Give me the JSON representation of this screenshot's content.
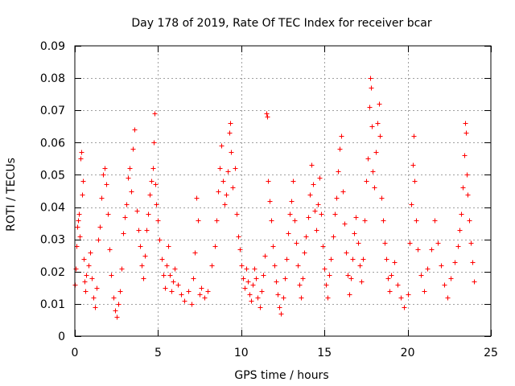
{
  "chart_data": {
    "type": "scatter",
    "title": "Day 178 of 2019, Rate Of TEC Index for receiver bcar",
    "xlabel": "GPS time / hours",
    "ylabel": "ROTI / TECUs",
    "xlim": [
      0,
      25
    ],
    "ylim": [
      0,
      0.09
    ],
    "x_ticks": [
      0,
      5,
      10,
      15,
      20,
      25
    ],
    "x_tick_labels": [
      "0",
      "5",
      "10",
      "15",
      "20",
      "25"
    ],
    "y_ticks": [
      0,
      0.01,
      0.02,
      0.03,
      0.04,
      0.05,
      0.06,
      0.07,
      0.08,
      0.09
    ],
    "y_tick_labels": [
      "0",
      "0.01",
      "0.02",
      "0.03",
      "0.04",
      "0.05",
      "0.06",
      "0.07",
      "0.08",
      "0.09"
    ],
    "grid": true,
    "marker": "plus",
    "color": "#ff0000",
    "points": [
      [
        0.0,
        0.016
      ],
      [
        0.05,
        0.021
      ],
      [
        0.1,
        0.028
      ],
      [
        0.15,
        0.034
      ],
      [
        0.2,
        0.036
      ],
      [
        0.25,
        0.038
      ],
      [
        0.3,
        0.031
      ],
      [
        0.35,
        0.055
      ],
      [
        0.4,
        0.057
      ],
      [
        0.45,
        0.044
      ],
      [
        0.5,
        0.048
      ],
      [
        0.55,
        0.024
      ],
      [
        0.6,
        0.017
      ],
      [
        0.65,
        0.014
      ],
      [
        0.7,
        0.019
      ],
      [
        0.8,
        0.022
      ],
      [
        0.9,
        0.026
      ],
      [
        1.0,
        0.018
      ],
      [
        1.1,
        0.012
      ],
      [
        1.2,
        0.009
      ],
      [
        1.3,
        0.015
      ],
      [
        1.4,
        0.03
      ],
      [
        1.5,
        0.034
      ],
      [
        1.6,
        0.043
      ],
      [
        1.7,
        0.05
      ],
      [
        1.8,
        0.052
      ],
      [
        1.9,
        0.047
      ],
      [
        2.0,
        0.038
      ],
      [
        2.1,
        0.027
      ],
      [
        2.2,
        0.019
      ],
      [
        2.3,
        0.012
      ],
      [
        2.4,
        0.008
      ],
      [
        2.5,
        0.006
      ],
      [
        2.6,
        0.01
      ],
      [
        2.7,
        0.014
      ],
      [
        2.8,
        0.021
      ],
      [
        2.9,
        0.032
      ],
      [
        3.0,
        0.037
      ],
      [
        3.1,
        0.041
      ],
      [
        3.2,
        0.049
      ],
      [
        3.3,
        0.052
      ],
      [
        3.4,
        0.045
      ],
      [
        3.5,
        0.058
      ],
      [
        3.6,
        0.064
      ],
      [
        3.7,
        0.039
      ],
      [
        3.8,
        0.033
      ],
      [
        3.9,
        0.028
      ],
      [
        4.0,
        0.022
      ],
      [
        4.1,
        0.018
      ],
      [
        4.2,
        0.025
      ],
      [
        4.3,
        0.033
      ],
      [
        4.4,
        0.038
      ],
      [
        4.5,
        0.044
      ],
      [
        4.6,
        0.048
      ],
      [
        4.7,
        0.052
      ],
      [
        4.75,
        0.06
      ],
      [
        4.8,
        0.069
      ],
      [
        4.85,
        0.047
      ],
      [
        4.9,
        0.041
      ],
      [
        5.0,
        0.036
      ],
      [
        5.1,
        0.03
      ],
      [
        5.2,
        0.024
      ],
      [
        5.3,
        0.019
      ],
      [
        5.4,
        0.015
      ],
      [
        5.5,
        0.022
      ],
      [
        5.6,
        0.028
      ],
      [
        5.7,
        0.019
      ],
      [
        5.8,
        0.014
      ],
      [
        5.9,
        0.017
      ],
      [
        6.0,
        0.021
      ],
      [
        6.2,
        0.016
      ],
      [
        6.4,
        0.013
      ],
      [
        6.6,
        0.011
      ],
      [
        6.8,
        0.014
      ],
      [
        7.0,
        0.01
      ],
      [
        7.1,
        0.018
      ],
      [
        7.2,
        0.026
      ],
      [
        7.3,
        0.043
      ],
      [
        7.4,
        0.036
      ],
      [
        7.5,
        0.013
      ],
      [
        7.6,
        0.015
      ],
      [
        7.8,
        0.012
      ],
      [
        8.0,
        0.014
      ],
      [
        8.2,
        0.022
      ],
      [
        8.4,
        0.028
      ],
      [
        8.5,
        0.036
      ],
      [
        8.6,
        0.045
      ],
      [
        8.7,
        0.052
      ],
      [
        8.8,
        0.059
      ],
      [
        8.9,
        0.048
      ],
      [
        9.0,
        0.041
      ],
      [
        9.1,
        0.044
      ],
      [
        9.2,
        0.051
      ],
      [
        9.3,
        0.063
      ],
      [
        9.35,
        0.066
      ],
      [
        9.4,
        0.057
      ],
      [
        9.5,
        0.046
      ],
      [
        9.6,
        0.052
      ],
      [
        9.7,
        0.038
      ],
      [
        9.8,
        0.031
      ],
      [
        9.9,
        0.027
      ],
      [
        10.0,
        0.022
      ],
      [
        10.1,
        0.018
      ],
      [
        10.2,
        0.015
      ],
      [
        10.3,
        0.021
      ],
      [
        10.4,
        0.017
      ],
      [
        10.5,
        0.013
      ],
      [
        10.6,
        0.011
      ],
      [
        10.7,
        0.016
      ],
      [
        10.8,
        0.021
      ],
      [
        10.9,
        0.018
      ],
      [
        11.0,
        0.012
      ],
      [
        11.1,
        0.009
      ],
      [
        11.2,
        0.014
      ],
      [
        11.3,
        0.019
      ],
      [
        11.4,
        0.025
      ],
      [
        11.5,
        0.069
      ],
      [
        11.55,
        0.068
      ],
      [
        11.6,
        0.048
      ],
      [
        11.7,
        0.042
      ],
      [
        11.8,
        0.036
      ],
      [
        11.9,
        0.028
      ],
      [
        12.0,
        0.022
      ],
      [
        12.1,
        0.017
      ],
      [
        12.2,
        0.013
      ],
      [
        12.3,
        0.009
      ],
      [
        12.4,
        0.007
      ],
      [
        12.5,
        0.012
      ],
      [
        12.6,
        0.018
      ],
      [
        12.7,
        0.024
      ],
      [
        12.8,
        0.032
      ],
      [
        12.9,
        0.038
      ],
      [
        13.0,
        0.042
      ],
      [
        13.1,
        0.048
      ],
      [
        13.2,
        0.036
      ],
      [
        13.3,
        0.029
      ],
      [
        13.4,
        0.022
      ],
      [
        13.5,
        0.016
      ],
      [
        13.6,
        0.012
      ],
      [
        13.7,
        0.018
      ],
      [
        13.8,
        0.026
      ],
      [
        13.9,
        0.031
      ],
      [
        14.0,
        0.037
      ],
      [
        14.1,
        0.044
      ],
      [
        14.2,
        0.053
      ],
      [
        14.3,
        0.047
      ],
      [
        14.4,
        0.039
      ],
      [
        14.5,
        0.033
      ],
      [
        14.6,
        0.041
      ],
      [
        14.7,
        0.049
      ],
      [
        14.8,
        0.038
      ],
      [
        14.9,
        0.028
      ],
      [
        15.0,
        0.021
      ],
      [
        15.1,
        0.016
      ],
      [
        15.2,
        0.012
      ],
      [
        15.3,
        0.019
      ],
      [
        15.4,
        0.024
      ],
      [
        15.5,
        0.031
      ],
      [
        15.6,
        0.038
      ],
      [
        15.7,
        0.043
      ],
      [
        15.8,
        0.051
      ],
      [
        15.9,
        0.058
      ],
      [
        16.0,
        0.062
      ],
      [
        16.1,
        0.045
      ],
      [
        16.2,
        0.035
      ],
      [
        16.3,
        0.026
      ],
      [
        16.4,
        0.019
      ],
      [
        16.5,
        0.013
      ],
      [
        16.6,
        0.018
      ],
      [
        16.7,
        0.024
      ],
      [
        16.8,
        0.032
      ],
      [
        16.9,
        0.037
      ],
      [
        17.0,
        0.029
      ],
      [
        17.1,
        0.022
      ],
      [
        17.2,
        0.017
      ],
      [
        17.3,
        0.024
      ],
      [
        17.4,
        0.036
      ],
      [
        17.5,
        0.048
      ],
      [
        17.6,
        0.055
      ],
      [
        17.7,
        0.071
      ],
      [
        17.75,
        0.08
      ],
      [
        17.8,
        0.077
      ],
      [
        17.85,
        0.065
      ],
      [
        17.9,
        0.051
      ],
      [
        18.0,
        0.046
      ],
      [
        18.1,
        0.057
      ],
      [
        18.2,
        0.066
      ],
      [
        18.3,
        0.072
      ],
      [
        18.35,
        0.062
      ],
      [
        18.4,
        0.043
      ],
      [
        18.5,
        0.036
      ],
      [
        18.6,
        0.029
      ],
      [
        18.7,
        0.024
      ],
      [
        18.8,
        0.018
      ],
      [
        18.9,
        0.014
      ],
      [
        19.0,
        0.019
      ],
      [
        19.2,
        0.023
      ],
      [
        19.4,
        0.016
      ],
      [
        19.6,
        0.012
      ],
      [
        19.8,
        0.009
      ],
      [
        20.0,
        0.013
      ],
      [
        20.1,
        0.029
      ],
      [
        20.2,
        0.041
      ],
      [
        20.3,
        0.053
      ],
      [
        20.35,
        0.062
      ],
      [
        20.4,
        0.048
      ],
      [
        20.5,
        0.036
      ],
      [
        20.6,
        0.027
      ],
      [
        20.8,
        0.019
      ],
      [
        21.0,
        0.014
      ],
      [
        21.2,
        0.021
      ],
      [
        21.4,
        0.027
      ],
      [
        21.6,
        0.036
      ],
      [
        21.8,
        0.029
      ],
      [
        22.0,
        0.022
      ],
      [
        22.2,
        0.016
      ],
      [
        22.4,
        0.012
      ],
      [
        22.6,
        0.018
      ],
      [
        22.8,
        0.023
      ],
      [
        23.0,
        0.028
      ],
      [
        23.1,
        0.033
      ],
      [
        23.2,
        0.038
      ],
      [
        23.3,
        0.046
      ],
      [
        23.4,
        0.056
      ],
      [
        23.45,
        0.066
      ],
      [
        23.5,
        0.063
      ],
      [
        23.55,
        0.05
      ],
      [
        23.6,
        0.044
      ],
      [
        23.7,
        0.036
      ],
      [
        23.8,
        0.029
      ],
      [
        23.9,
        0.023
      ],
      [
        24.0,
        0.017
      ]
    ]
  }
}
